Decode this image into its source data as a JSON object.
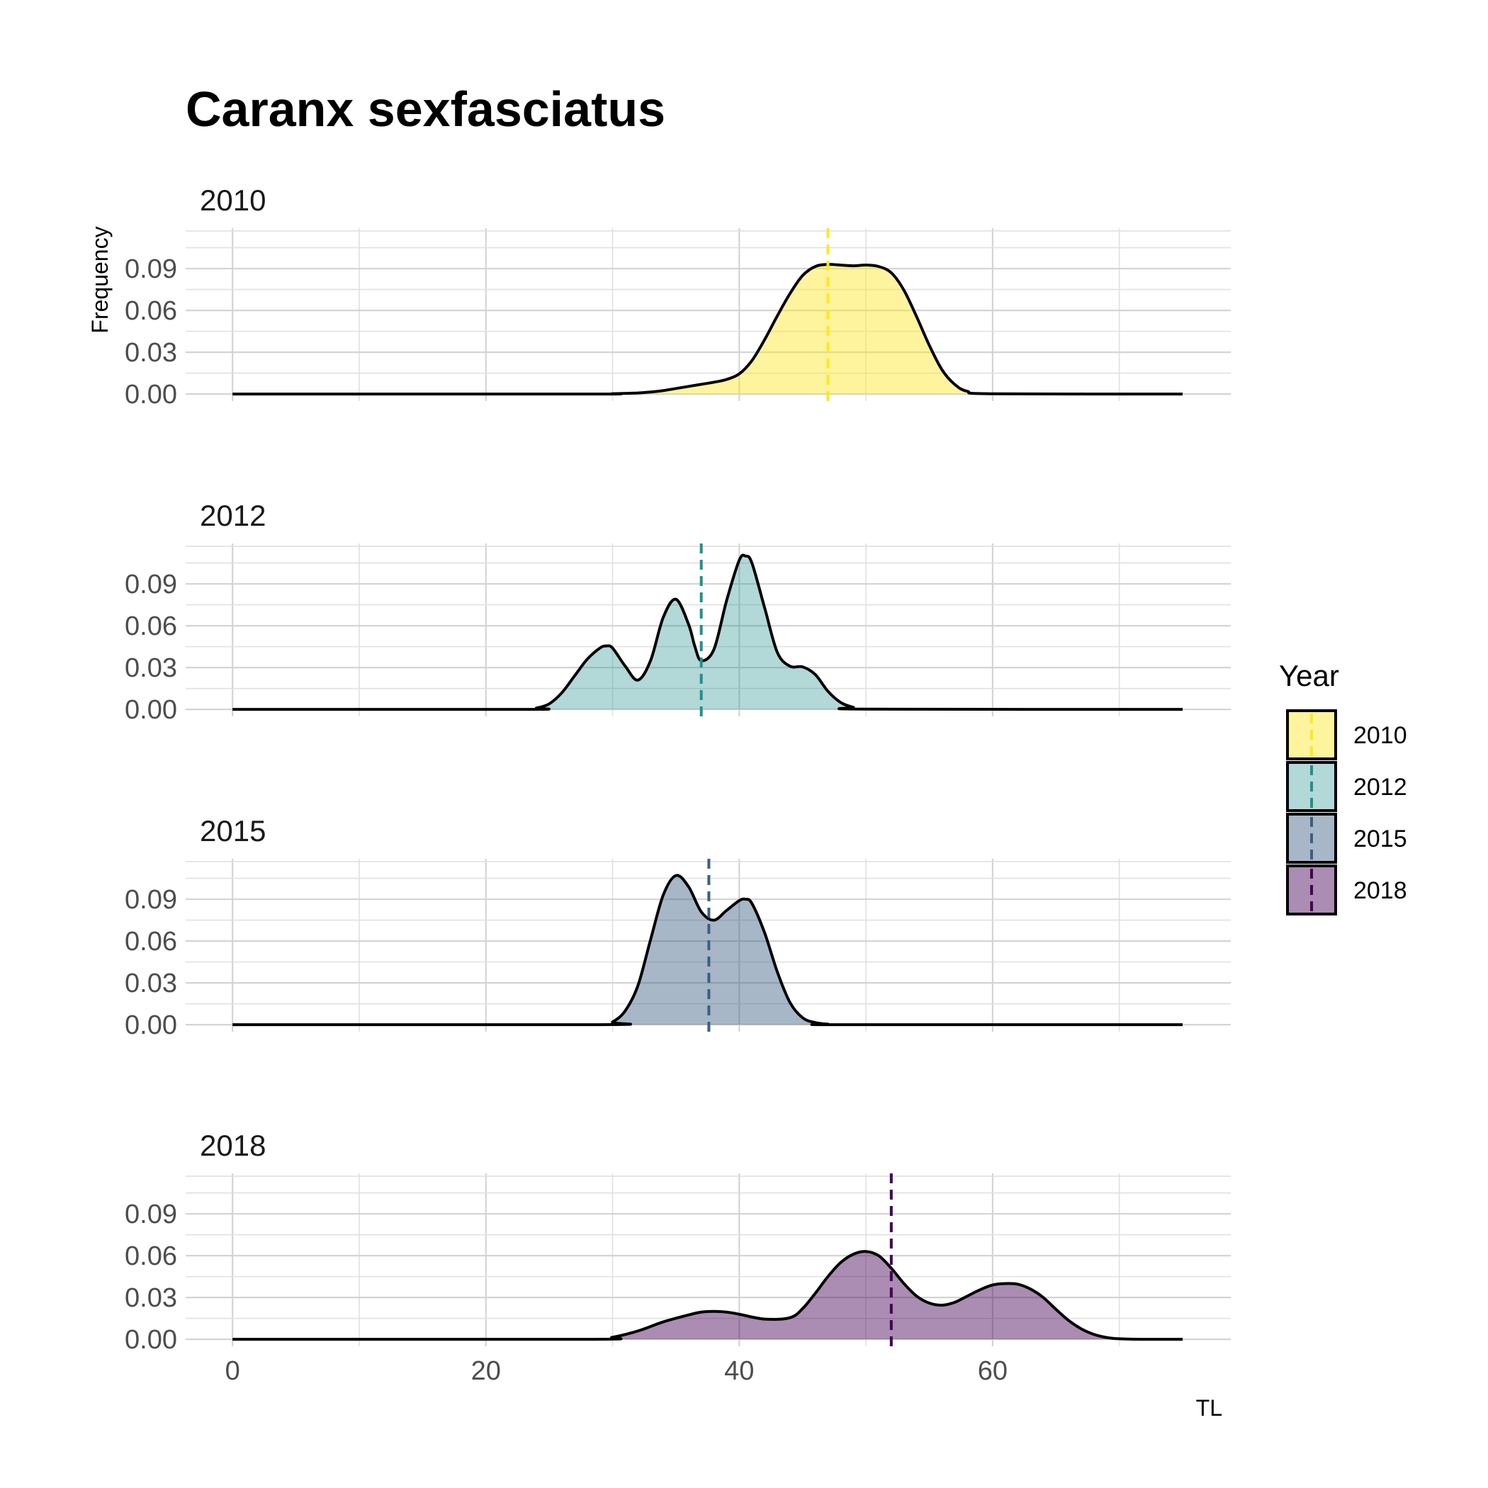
{
  "chart_data": {
    "type": "area",
    "subtype": "density-facets",
    "title": "Caranx sexfasciatus",
    "xlabel": "TL",
    "ylabel": "Frequency",
    "xlim": [
      -3.7,
      78.8
    ],
    "ylim": [
      -0.005,
      0.119
    ],
    "xticks": [
      0,
      20,
      40,
      60
    ],
    "yticks": [
      0.0,
      0.03,
      0.06,
      0.09
    ],
    "ytick_labels": [
      "0.00",
      "0.03",
      "0.06",
      "0.09"
    ],
    "grid": true,
    "legend": {
      "title": "Year",
      "placement": "right"
    },
    "panels": [
      {
        "name": "2010",
        "color": "#FDE725",
        "fill_opacity": 0.45,
        "mean_line": 47.0,
        "x": [
          0,
          28,
          30,
          32,
          33,
          34,
          35,
          36,
          37,
          38,
          39,
          40,
          41,
          42,
          43,
          44,
          45,
          46,
          47,
          48,
          49,
          50,
          51,
          52,
          53,
          54,
          55,
          56,
          57,
          58,
          60,
          75
        ],
        "y": [
          0,
          0,
          0.0003,
          0.0008,
          0.0015,
          0.0025,
          0.004,
          0.0055,
          0.007,
          0.0085,
          0.0105,
          0.0145,
          0.024,
          0.039,
          0.056,
          0.072,
          0.085,
          0.0915,
          0.093,
          0.0925,
          0.092,
          0.0925,
          0.0915,
          0.087,
          0.0745,
          0.0555,
          0.035,
          0.0175,
          0.007,
          0.002,
          0.0002,
          0
        ]
      },
      {
        "name": "2012",
        "color": "#21908C",
        "fill_opacity": 0.35,
        "mean_line": 37.0,
        "x": [
          0,
          23,
          24,
          25,
          26,
          27,
          28,
          29,
          29.5,
          30,
          31,
          32,
          33,
          34,
          35,
          36,
          36.5,
          37,
          38,
          39,
          40,
          40.5,
          41,
          42,
          43,
          44,
          45,
          46,
          47,
          48,
          49,
          50,
          75
        ],
        "y": [
          0,
          0,
          0.001,
          0.004,
          0.012,
          0.024,
          0.036,
          0.044,
          0.0455,
          0.044,
          0.031,
          0.021,
          0.035,
          0.066,
          0.079,
          0.061,
          0.045,
          0.035,
          0.043,
          0.078,
          0.107,
          0.11,
          0.105,
          0.073,
          0.041,
          0.031,
          0.0305,
          0.025,
          0.013,
          0.005,
          0.0015,
          0.0002,
          0
        ]
      },
      {
        "name": "2015",
        "color": "#3B5F82",
        "fill_opacity": 0.45,
        "mean_line": 37.6,
        "x": [
          0,
          29,
          30,
          31,
          32,
          33,
          34,
          35,
          36,
          37,
          38,
          39,
          40,
          40.5,
          41,
          42,
          43,
          44,
          45,
          46,
          47,
          48,
          75
        ],
        "y": [
          0,
          0,
          0.002,
          0.01,
          0.028,
          0.061,
          0.093,
          0.107,
          0.099,
          0.081,
          0.075,
          0.082,
          0.089,
          0.09,
          0.087,
          0.066,
          0.038,
          0.016,
          0.005,
          0.0015,
          0.0004,
          0,
          0
        ]
      },
      {
        "name": "2018",
        "color": "#440154",
        "fill_opacity": 0.45,
        "mean_line": 52.0,
        "x": [
          0,
          28,
          30,
          32,
          34,
          36,
          37,
          38,
          39,
          40,
          42,
          44,
          45,
          46,
          47,
          48,
          49,
          50,
          51,
          52,
          53,
          54,
          55,
          56,
          57,
          58,
          59,
          60,
          61,
          62,
          63,
          64,
          65,
          66,
          67,
          68,
          69,
          70,
          72,
          75
        ],
        "y": [
          0,
          0,
          0.0015,
          0.006,
          0.0125,
          0.0175,
          0.0195,
          0.02,
          0.0195,
          0.018,
          0.0145,
          0.0155,
          0.022,
          0.033,
          0.045,
          0.055,
          0.061,
          0.063,
          0.06,
          0.051,
          0.04,
          0.031,
          0.026,
          0.0245,
          0.0265,
          0.031,
          0.0355,
          0.039,
          0.04,
          0.0395,
          0.036,
          0.03,
          0.0215,
          0.0135,
          0.0075,
          0.0035,
          0.0013,
          0.0004,
          0,
          0
        ]
      }
    ]
  }
}
